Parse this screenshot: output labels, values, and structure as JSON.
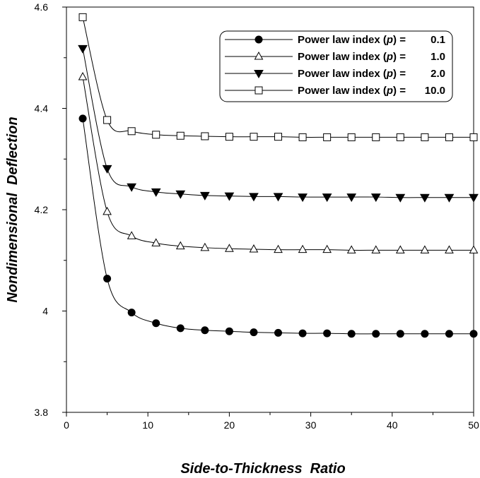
{
  "chart_data": {
    "type": "line",
    "title": "",
    "xlabel": "Side-to-Thickness  Ratio",
    "ylabel": "Nondimensional  Deflection",
    "xlim": [
      0,
      50
    ],
    "ylim": [
      3.8,
      4.6
    ],
    "xticks": [
      0,
      10,
      20,
      30,
      40,
      50
    ],
    "xtick_labels": [
      "0",
      "10",
      "20",
      "30",
      "40",
      "50"
    ],
    "yticks": [
      3.8,
      4.0,
      4.2,
      4.4,
      4.6
    ],
    "ytick_labels": [
      "3.8",
      "4",
      "4.2",
      "4.4",
      "4.6"
    ],
    "grid": false,
    "legend_position": "top-right",
    "x": [
      2,
      5,
      8,
      11,
      14,
      17,
      20,
      23,
      26,
      29,
      32,
      35,
      38,
      41,
      44,
      47,
      50
    ],
    "series": [
      {
        "name": "Power law index (p) = 0.1",
        "legend_prefix": "Power  law  index (",
        "legend_p": "p",
        "legend_suffix": ") =",
        "legend_value": "0.1",
        "marker": "filled-circle",
        "color": "#000000",
        "values": [
          4.38,
          4.064,
          3.997,
          3.976,
          3.966,
          3.962,
          3.96,
          3.958,
          3.957,
          3.956,
          3.956,
          3.955,
          3.955,
          3.955,
          3.955,
          3.955,
          3.955
        ]
      },
      {
        "name": "Power law index (p) = 1.0",
        "legend_prefix": "Power  law  index (",
        "legend_p": "p",
        "legend_suffix": ") =",
        "legend_value": "1.0",
        "marker": "open-triangle-up",
        "color": "#000000",
        "values": [
          4.462,
          4.196,
          4.148,
          4.134,
          4.128,
          4.125,
          4.123,
          4.122,
          4.121,
          4.121,
          4.121,
          4.12,
          4.12,
          4.12,
          4.12,
          4.12,
          4.12
        ]
      },
      {
        "name": "Power law index (p) = 2.0",
        "legend_prefix": "Power  law  index (",
        "legend_p": "p",
        "legend_suffix": ") =",
        "legend_value": "2.0",
        "marker": "filled-triangle-down",
        "color": "#000000",
        "values": [
          4.518,
          4.281,
          4.245,
          4.235,
          4.231,
          4.228,
          4.227,
          4.226,
          4.226,
          4.225,
          4.225,
          4.225,
          4.225,
          4.224,
          4.224,
          4.224,
          4.224
        ]
      },
      {
        "name": "Power law index (p) = 10.0",
        "legend_prefix": "Power  law  index (",
        "legend_p": "p",
        "legend_suffix": ") =",
        "legend_value": "10.0",
        "marker": "open-square",
        "color": "#000000",
        "values": [
          4.58,
          4.377,
          4.355,
          4.348,
          4.346,
          4.345,
          4.344,
          4.344,
          4.344,
          4.343,
          4.343,
          4.343,
          4.343,
          4.343,
          4.343,
          4.343,
          4.343
        ]
      }
    ]
  }
}
